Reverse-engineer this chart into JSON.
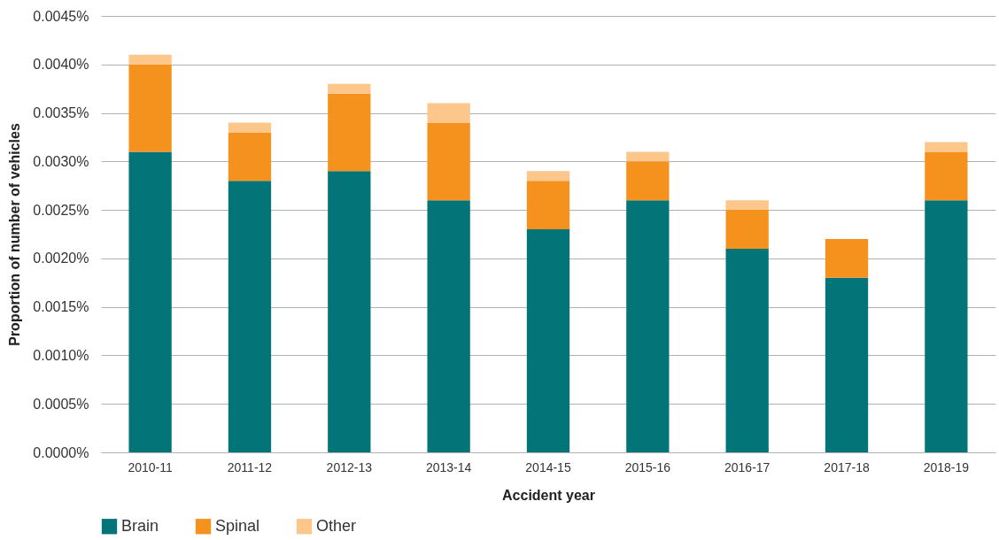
{
  "chart_data": {
    "type": "bar",
    "stacked": true,
    "xlabel": "Accident year",
    "ylabel": "Proportion of number of vehicles",
    "categories": [
      "2010-11",
      "2011-12",
      "2012-13",
      "2013-14",
      "2014-15",
      "2015-16",
      "2016-17",
      "2017-18",
      "2018-19"
    ],
    "series": [
      {
        "name": "Brain",
        "color": "#037579",
        "values": [
          0.0031,
          0.0028,
          0.0029,
          0.0026,
          0.0023,
          0.0026,
          0.0021,
          0.0018,
          0.0026
        ]
      },
      {
        "name": "Spinal",
        "color": "#f5921e",
        "values": [
          0.0009,
          0.0005,
          0.0008,
          0.0008,
          0.0005,
          0.0004,
          0.0004,
          0.0004,
          0.0005
        ]
      },
      {
        "name": "Other",
        "color": "#fdc68b",
        "values": [
          0.0001,
          0.0001,
          0.0001,
          0.0002,
          0.0001,
          0.0001,
          0.0001,
          0,
          0.0001
        ]
      }
    ],
    "ylim": [
      0,
      0.0045
    ],
    "yticks": [
      {
        "value": 0,
        "label": "0.0000%"
      },
      {
        "value": 0.0005,
        "label": "0.0005%"
      },
      {
        "value": 0.001,
        "label": "0.0010%"
      },
      {
        "value": 0.0015,
        "label": "0.0015%"
      },
      {
        "value": 0.002,
        "label": "0.0020%"
      },
      {
        "value": 0.0025,
        "label": "0.0025%"
      },
      {
        "value": 0.003,
        "label": "0.0030%"
      },
      {
        "value": 0.0035,
        "label": "0.0035%"
      },
      {
        "value": 0.004,
        "label": "0.0040%"
      },
      {
        "value": 0.0045,
        "label": "0.0045%"
      }
    ],
    "grid": "y",
    "legend": "bottom"
  }
}
